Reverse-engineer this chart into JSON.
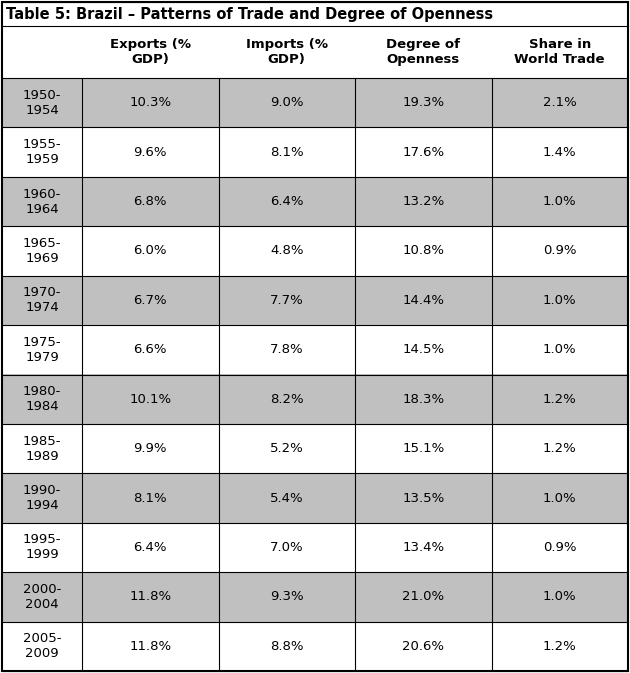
{
  "title": "Table 5: Brazil – Patterns of Trade and Degree of Openness",
  "col_headers": [
    "Exports (%\nGDP)",
    "Imports (%\nGDP)",
    "Degree of\nOpenness",
    "Share in\nWorld Trade"
  ],
  "row_labels": [
    "1950-\n1954",
    "1955-\n1959",
    "1960-\n1964",
    "1965-\n1969",
    "1970-\n1974",
    "1975-\n1979",
    "1980-\n1984",
    "1985-\n1989",
    "1990-\n1994",
    "1995-\n1999",
    "2000-\n2004",
    "2005-\n2009"
  ],
  "data": [
    [
      "10.3%",
      "9.0%",
      "19.3%",
      "2.1%"
    ],
    [
      "9.6%",
      "8.1%",
      "17.6%",
      "1.4%"
    ],
    [
      "6.8%",
      "6.4%",
      "13.2%",
      "1.0%"
    ],
    [
      "6.0%",
      "4.8%",
      "10.8%",
      "0.9%"
    ],
    [
      "6.7%",
      "7.7%",
      "14.4%",
      "1.0%"
    ],
    [
      "6.6%",
      "7.8%",
      "14.5%",
      "1.0%"
    ],
    [
      "10.1%",
      "8.2%",
      "18.3%",
      "1.2%"
    ],
    [
      "9.9%",
      "5.2%",
      "15.1%",
      "1.2%"
    ],
    [
      "8.1%",
      "5.4%",
      "13.5%",
      "1.0%"
    ],
    [
      "6.4%",
      "7.0%",
      "13.4%",
      "0.9%"
    ],
    [
      "11.8%",
      "9.3%",
      "21.0%",
      "1.0%"
    ],
    [
      "11.8%",
      "8.8%",
      "20.6%",
      "1.2%"
    ]
  ],
  "shaded_rows": [
    0,
    2,
    4,
    6,
    8,
    10
  ],
  "shade_color": "#c0c0c0",
  "white_color": "#ffffff",
  "header_bg": "#ffffff",
  "title_fontsize": 10.5,
  "header_fontsize": 9.5,
  "cell_fontsize": 9.5,
  "row_label_fontsize": 9.5,
  "border_color": "#000000",
  "title_bg": "#ffffff",
  "fig_width": 6.3,
  "fig_height": 6.73,
  "dpi": 100
}
